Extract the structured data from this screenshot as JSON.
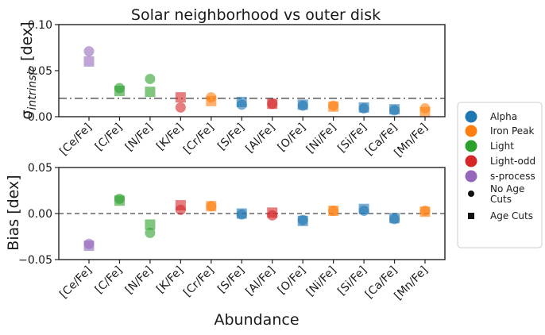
{
  "chart_data": {
    "type": "scatter",
    "title": "Solar neighborhood vs outer disk",
    "xlabel": "Abundance",
    "categories": [
      "[Ce/Fe]",
      "[C/Fe]",
      "[N/Fe]",
      "[K/Fe]",
      "[Cr/Fe]",
      "[S/Fe]",
      "[Al/Fe]",
      "[O/Fe]",
      "[Ni/Fe]",
      "[Si/Fe]",
      "[Ca/Fe]",
      "[Mn/Fe]"
    ],
    "groups": [
      "s-process",
      "Light",
      "Light",
      "Light-odd",
      "Iron Peak",
      "Alpha",
      "Light-odd",
      "Alpha",
      "Iron Peak",
      "Alpha",
      "Alpha",
      "Iron Peak"
    ],
    "group_colors": {
      "Alpha": "#1f77b4",
      "Iron Peak": "#ff7f0e",
      "Light": "#2ca02c",
      "Light-odd": "#d62728",
      "s-process": "#9467bd"
    },
    "panels": [
      {
        "ylabel": "σ_intrinsic [dex]",
        "ylabel_main": "σ",
        "ylabel_sub": "intrinsic",
        "ylabel_unit": " [dex]",
        "ylim": [
          0.0,
          0.1
        ],
        "yticks": [
          "0.00",
          "0.05",
          "0.10"
        ],
        "ytick_values": [
          0.0,
          0.05,
          0.1
        ],
        "reference_line": 0.02,
        "reference_style": "dash-dot",
        "series": [
          {
            "name": "No Age Cuts",
            "marker": "circle",
            "values": [
              0.071,
              0.031,
              0.041,
              0.01,
              0.021,
              0.013,
              0.014,
              0.012,
              0.012,
              0.009,
              0.007,
              0.009
            ]
          },
          {
            "name": "Age Cuts",
            "marker": "square",
            "values": [
              0.06,
              0.028,
              0.027,
              0.021,
              0.017,
              0.016,
              0.014,
              0.013,
              0.011,
              0.01,
              0.008,
              0.005
            ]
          }
        ]
      },
      {
        "ylabel": "Bias [dex]",
        "ylim": [
          -0.05,
          0.05
        ],
        "yticks": [
          "−0.05",
          "0.00",
          "0.05"
        ],
        "ytick_values": [
          -0.05,
          0.0,
          0.05
        ],
        "reference_line": 0.0,
        "reference_style": "dashed",
        "series": [
          {
            "name": "No Age Cuts",
            "marker": "circle",
            "values": [
              -0.033,
              0.016,
              -0.021,
              0.004,
              0.008,
              -0.001,
              -0.002,
              -0.007,
              0.003,
              0.003,
              -0.006,
              0.003
            ]
          },
          {
            "name": "Age Cuts",
            "marker": "square",
            "values": [
              -0.035,
              0.014,
              -0.012,
              0.009,
              0.008,
              0.0,
              0.001,
              -0.008,
              0.003,
              0.005,
              -0.005,
              0.002
            ]
          }
        ]
      }
    ],
    "legend": {
      "placement": "right",
      "entries": [
        {
          "label": "Alpha",
          "color": "#1f77b4",
          "marker": "circle"
        },
        {
          "label": "Iron Peak",
          "color": "#ff7f0e",
          "marker": "circle"
        },
        {
          "label": "Light",
          "color": "#2ca02c",
          "marker": "circle"
        },
        {
          "label": "Light-odd",
          "color": "#d62728",
          "marker": "circle"
        },
        {
          "label": "s-process",
          "color": "#9467bd",
          "marker": "circle"
        },
        {
          "label": "No Age Cuts",
          "color": "#111111",
          "marker": "small-circle"
        },
        {
          "label": "Age Cuts",
          "color": "#111111",
          "marker": "small-square"
        }
      ]
    }
  }
}
